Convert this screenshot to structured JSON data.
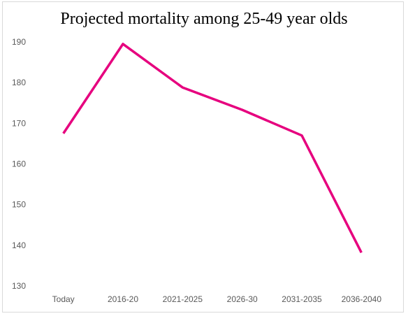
{
  "chart_data": {
    "type": "line",
    "title": "Projected mortality among 25-49 year olds",
    "xlabel": "",
    "ylabel": "",
    "categories": [
      "Today",
      "2016-20",
      "2021-2025",
      "2026-30",
      "2031-2035",
      "2036-2040"
    ],
    "series": [
      {
        "values": [
          167.5,
          189.5,
          178.8,
          173.3,
          167,
          138.2
        ],
        "color": "#e6007e"
      }
    ],
    "ylim": [
      130,
      190
    ],
    "yticks": [
      130,
      140,
      150,
      160,
      170,
      180,
      190
    ],
    "grid": false,
    "legend": "none"
  }
}
